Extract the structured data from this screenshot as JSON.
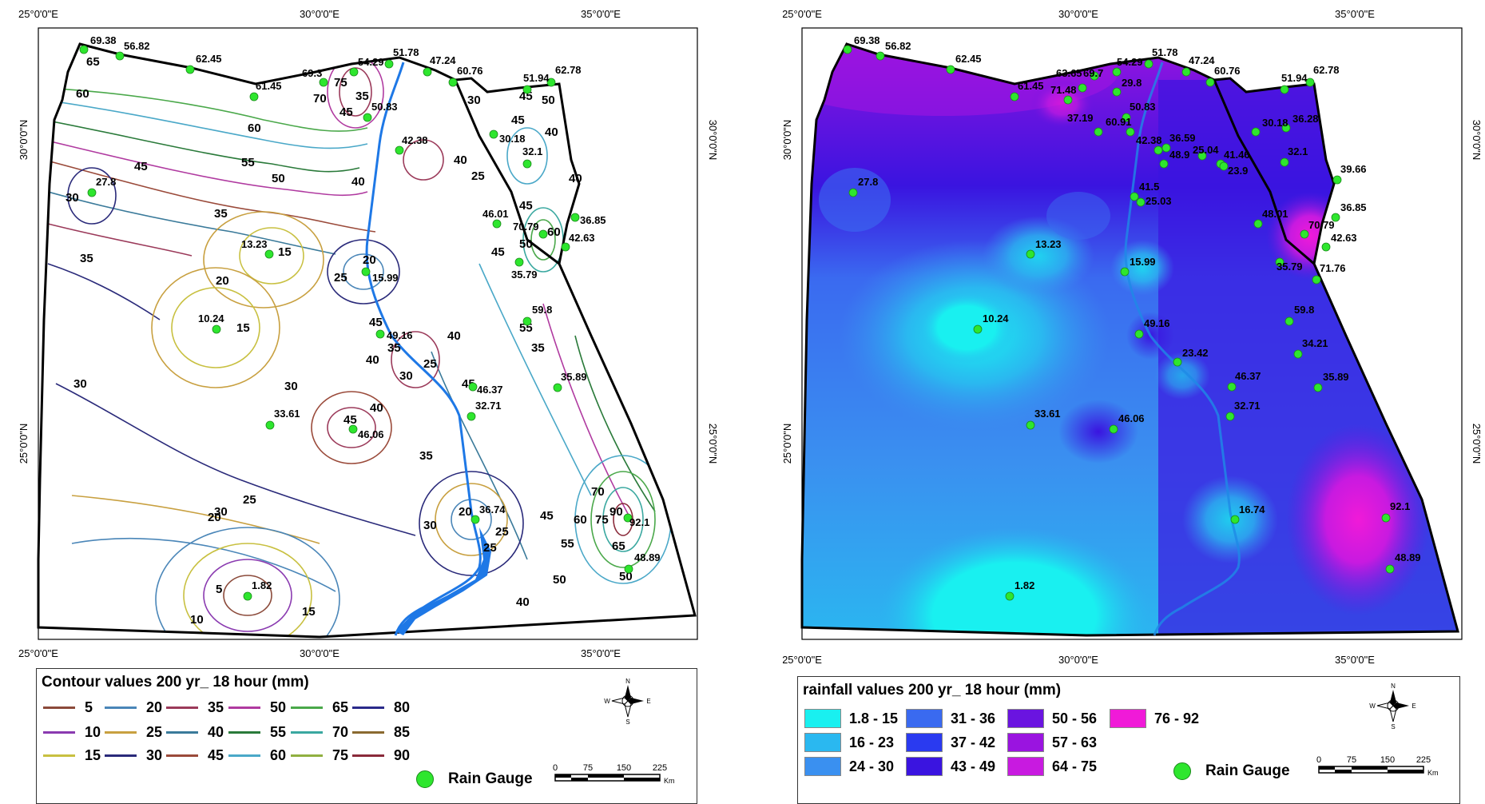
{
  "left_map": {
    "top_labels": [
      "25°0'0\"E",
      "30°0'0\"E",
      "35°0'0\"E"
    ],
    "bottom_labels": [
      "25°0'0\"E",
      "30°0'0\"E",
      "35°0'0\"E"
    ],
    "left_labels": [
      "30°0'0\"N",
      "25°0'0\"N"
    ],
    "right_labels": [
      "30°0'0\"N",
      "25°0'0\"N"
    ],
    "gauges": [
      "69.38",
      "56.82",
      "62.45",
      "61.45",
      "69.3",
      "54.29",
      "51.78",
      "47.24",
      "60.76",
      "51.94",
      "62.78",
      "50.83",
      "42.38",
      "30.18",
      "32.1",
      "27.8",
      "13.23",
      "15.99",
      "10.24",
      "49.16",
      "46.01",
      "70.79",
      "36.85",
      "42.63",
      "35.79",
      "59.8",
      "35.89",
      "46.37",
      "32.71",
      "33.61",
      "46.06",
      "36.74",
      "92.1",
      "48.89",
      "1.82"
    ],
    "contour_labels": [
      "65",
      "60",
      "60",
      "55",
      "50",
      "45",
      "35",
      "40",
      "30",
      "35",
      "30",
      "25",
      "20",
      "15",
      "15",
      "20",
      "25",
      "30",
      "45",
      "40",
      "35",
      "45",
      "40",
      "35",
      "25",
      "30",
      "45",
      "40",
      "30",
      "20",
      "25",
      "30",
      "40",
      "45",
      "50",
      "55",
      "60",
      "65",
      "70",
      "75",
      "90",
      "50",
      "10",
      "5",
      "15",
      "20",
      "25",
      "45",
      "50",
      "45",
      "40",
      "40",
      "45",
      "55",
      "60",
      "30",
      "25",
      "40",
      "45",
      "50",
      "35",
      "70",
      "75",
      "45",
      "35"
    ]
  },
  "right_map": {
    "top_labels": [
      "25°0'0\"E",
      "30°0'0\"E",
      "35°0'0\"E"
    ],
    "bottom_labels": [
      "25°0'0\"E",
      "30°0'0\"E",
      "35°0'0\"E"
    ],
    "left_labels": [
      "30°0'0\"N",
      "25°0'0\"N"
    ],
    "right_labels": [
      "30°0'0\"N",
      "25°0'0\"N"
    ],
    "gauges": [
      "69.38",
      "56.82",
      "62.45",
      "61.45",
      "63.65",
      "69.7",
      "54.29",
      "51.78",
      "47.24",
      "60.76",
      "51.94",
      "62.78",
      "71.48",
      "29.8",
      "50.83",
      "37.19",
      "60.91",
      "30.18",
      "36.28",
      "42.38",
      "36.59",
      "48.9",
      "25.04",
      "41.46",
      "32.1",
      "23.9",
      "39.66",
      "27.8",
      "41.5",
      "25.03",
      "48.01",
      "70.79",
      "36.85",
      "42.63",
      "13.23",
      "15.99",
      "35.79",
      "71.76",
      "10.24",
      "59.8",
      "49.16",
      "34.21",
      "23.42",
      "35.89",
      "46.37",
      "33.61",
      "46.06",
      "32.71",
      "16.74",
      "92.1",
      "48.89",
      "1.82"
    ]
  },
  "left_legend": {
    "title": "Contour values 200 yr_ 18 hour (mm)",
    "items": [
      {
        "label": "5",
        "color": "#8b4a3a"
      },
      {
        "label": "20",
        "color": "#4a86b8"
      },
      {
        "label": "35",
        "color": "#9b3a5a"
      },
      {
        "label": "50",
        "color": "#b03aa0"
      },
      {
        "label": "65",
        "color": "#4aa84a"
      },
      {
        "label": "80",
        "color": "#2a2a8a"
      },
      {
        "label": "10",
        "color": "#8a3ab0"
      },
      {
        "label": "25",
        "color": "#c8a040"
      },
      {
        "label": "40",
        "color": "#3a7a9a"
      },
      {
        "label": "55",
        "color": "#2a7a3a"
      },
      {
        "label": "70",
        "color": "#3aa8a0"
      },
      {
        "label": "85",
        "color": "#8a6a30"
      },
      {
        "label": "15",
        "color": "#c8c040"
      },
      {
        "label": "30",
        "color": "#2a2a7a"
      },
      {
        "label": "45",
        "color": "#9a4a3a"
      },
      {
        "label": "60",
        "color": "#4aa8c8"
      },
      {
        "label": "75",
        "color": "#90b040"
      },
      {
        "label": "90",
        "color": "#8a2a3a"
      }
    ],
    "rain_gauge": "Rain Gauge",
    "scale_ticks": [
      "0",
      "75",
      "150",
      "225"
    ],
    "scale_unit": "Km",
    "compass": {
      "n": "N",
      "s": "S",
      "e": "E",
      "w": "W"
    }
  },
  "right_legend": {
    "title": "rainfall values 200 yr_ 18 hour (mm)",
    "items": [
      {
        "label": "1.8 - 15",
        "color": "#19f0f0"
      },
      {
        "label": "31 - 36",
        "color": "#3a6af0"
      },
      {
        "label": "50 - 56",
        "color": "#6a14e0"
      },
      {
        "label": "76 - 92",
        "color": "#f01ad8"
      },
      {
        "label": "16 - 23",
        "color": "#2ab8f0"
      },
      {
        "label": "37 - 42",
        "color": "#2a3af0"
      },
      {
        "label": "57 - 63",
        "color": "#9a14e0"
      },
      {
        "label": "24 - 30",
        "color": "#3a90f0"
      },
      {
        "label": "43 - 49",
        "color": "#3a14e0"
      },
      {
        "label": "64 - 75",
        "color": "#c81ae0"
      }
    ],
    "rain_gauge": "Rain Gauge",
    "scale_ticks": [
      "0",
      "75",
      "150",
      "225"
    ],
    "scale_unit": "Km",
    "compass": {
      "n": "N",
      "s": "S",
      "e": "E",
      "w": "W"
    }
  }
}
